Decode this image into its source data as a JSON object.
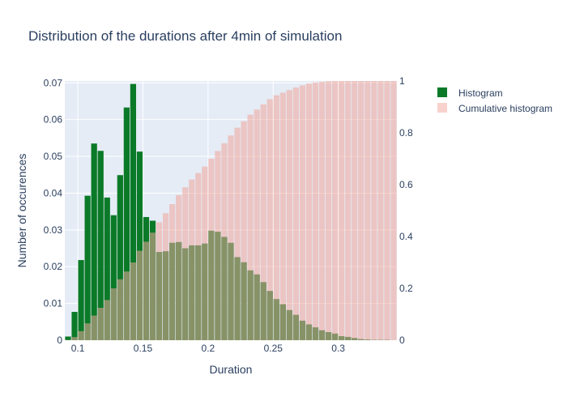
{
  "chart_data": {
    "type": "bar",
    "title": "Distribution of the durations after 4min of simulation",
    "xlabel": "Duration",
    "ylabel": "Number of occurences",
    "y2label": "",
    "xlim": [
      0.09,
      0.345
    ],
    "ylim": [
      0,
      0.0705
    ],
    "y2lim": [
      0,
      1.0
    ],
    "x_ticks": [
      "0.1",
      "0.15",
      "0.2",
      "0.25",
      "0.3"
    ],
    "y_ticks": [
      "0",
      "0.01",
      "0.02",
      "0.03",
      "0.04",
      "0.05",
      "0.06",
      "0.07"
    ],
    "y2_ticks": [
      "0",
      "0.2",
      "0.4",
      "0.6",
      "0.8",
      "1"
    ],
    "bin_start": 0.09,
    "bin_width": 0.005,
    "grid": true,
    "legend_position": "top-right",
    "series": [
      {
        "name": "Histogram",
        "color": "#0b7a28",
        "axis": "left",
        "values": [
          0.001,
          0.0077,
          0.0218,
          0.0393,
          0.0535,
          0.0515,
          0.0388,
          0.034,
          0.0449,
          0.0633,
          0.0697,
          0.0513,
          0.0335,
          0.0325,
          0.024,
          0.0242,
          0.0265,
          0.0267,
          0.025,
          0.0258,
          0.0258,
          0.0263,
          0.0298,
          0.0295,
          0.0281,
          0.0265,
          0.0226,
          0.0212,
          0.019,
          0.0179,
          0.0158,
          0.0134,
          0.0112,
          0.0098,
          0.0082,
          0.0069,
          0.0053,
          0.0043,
          0.0035,
          0.0027,
          0.0022,
          0.0018,
          0.0011,
          0.0009,
          0.0006,
          0.0003,
          0.0002,
          0.0001,
          0.0001,
          0.0001,
          0.0,
          0.0,
          0.0
        ]
      },
      {
        "name": "Cumulative histogram",
        "color": "#f1a59b",
        "axis": "right",
        "values": [
          0.001,
          0.012,
          0.035,
          0.065,
          0.095,
          0.125,
          0.155,
          0.2,
          0.235,
          0.265,
          0.3,
          0.345,
          0.38,
          0.415,
          0.455,
          0.49,
          0.525,
          0.56,
          0.59,
          0.62,
          0.645,
          0.67,
          0.7,
          0.73,
          0.76,
          0.79,
          0.82,
          0.845,
          0.87,
          0.89,
          0.91,
          0.93,
          0.945,
          0.955,
          0.965,
          0.975,
          0.983,
          0.99,
          0.994,
          0.997,
          0.999,
          1.0,
          1.0,
          1.0,
          1.0,
          1.0,
          1.0,
          1.0,
          1.0,
          1.0,
          1.0,
          1.0,
          1.0
        ]
      }
    ]
  }
}
